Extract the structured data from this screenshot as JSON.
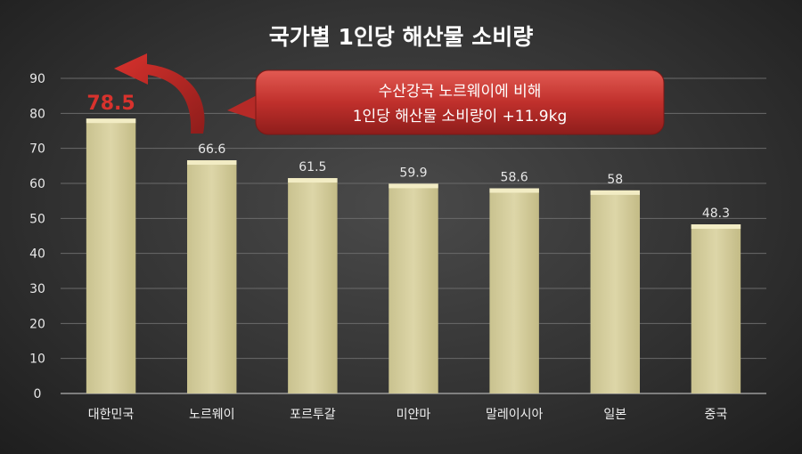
{
  "chart_data": {
    "type": "bar",
    "title": "국가별 1인당 해산물 소비량",
    "categories": [
      "대한민국",
      "노르웨이",
      "포르투갈",
      "미얀마",
      "말레이시아",
      "일본",
      "중국"
    ],
    "values": [
      78.5,
      66.6,
      61.5,
      59.9,
      58.6,
      58,
      48.3
    ],
    "value_labels": [
      "78.5",
      "66.6",
      "61.5",
      "59.9",
      "58.6",
      "58",
      "48.3"
    ],
    "ylim": [
      0,
      90
    ],
    "yticks": [
      0,
      10,
      20,
      30,
      40,
      50,
      60,
      70,
      80,
      90
    ],
    "grid": true,
    "highlight_index": 0,
    "annotation": {
      "lines": [
        "수산강국 노르웨이에 비해",
        "1인당 해산물 소비량이 +11.9kg"
      ]
    },
    "colors": {
      "bar": "#d6cfa0",
      "bar_top": "#f2ecc4",
      "highlight_text": "#d8322d",
      "callout": "#c0302c"
    }
  }
}
